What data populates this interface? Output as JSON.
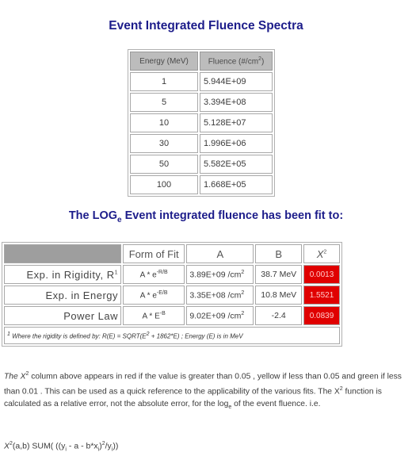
{
  "title": "Event Integrated Fluence Spectra",
  "fluence_table": {
    "headers": {
      "energy": "Energy (MeV)",
      "fluence": "Fluence (#/cm",
      "fluence_sup": "2",
      "fluence_end": ")"
    },
    "rows": [
      {
        "energy": "1",
        "fluence": "5.944E+09"
      },
      {
        "energy": "5",
        "fluence": "3.394E+08"
      },
      {
        "energy": "10",
        "fluence": "5.128E+07"
      },
      {
        "energy": "30",
        "fluence": "1.996E+06"
      },
      {
        "energy": "50",
        "fluence": "5.582E+05"
      },
      {
        "energy": "100",
        "fluence": "1.668E+05"
      }
    ]
  },
  "fit_title": {
    "pre": "The LOG",
    "sub": "e",
    "post": " Event integrated fluence has been fit to:"
  },
  "fit_table": {
    "headers": {
      "form": "Form of Fit",
      "a": "A",
      "b": "B",
      "chi": "X",
      "chi_sup": "2"
    },
    "rows": [
      {
        "name": "Exp. in Rigidity, R",
        "name_sup": "1",
        "form": "A * e",
        "form_sup": "-R/B",
        "a": "3.89E+09 /cm",
        "a_sup": "2",
        "b": "38.7 MeV",
        "chi": "0.0013"
      },
      {
        "name": "Exp. in Energy",
        "name_sup": "",
        "form": "A * e",
        "form_sup": "-E/B",
        "a": "3.35E+08 /cm",
        "a_sup": "2",
        "b": "10.8 MeV",
        "chi": "1.5521"
      },
      {
        "name": "Power Law",
        "name_sup": "",
        "form": "A * E",
        "form_sup": "-B",
        "a": "9.02E+09 /cm",
        "a_sup": "2",
        "b": "-2.4",
        "chi": "0.0839"
      }
    ],
    "note_sup": "1",
    "note": " Where the rigidity is defined by: R(E) = SQRT(E",
    "note_sup2": "2",
    "note_end": " + 1862*E) ; Energy (E) is in MeV"
  },
  "paragraph": {
    "p1": "The X",
    "p1_sup": "2",
    "p2": " column above appears in red if the value is greater than 0.05 , yellow if less than 0.05 and green if less than 0.01 . This can be used as a quick reference to the applicability of the various fits. The X",
    "p2_sup": "2",
    "p3": " function is calculated as a relative error, not the absolute error, for the log",
    "p3_sub": "e",
    "p4": " of the event fluence. i.e."
  },
  "formula": {
    "x": "X",
    "x_sup": "2",
    "body1": "(a,b)  SUM( ((y",
    "i1": "i",
    "body2": " - a - b*x",
    "i2": "i",
    "body3": ")",
    "sup3": "2",
    "body4": "/y",
    "i3": "i",
    "body5": "))"
  },
  "colors": {
    "title": "#1c1c8a",
    "chi_red": "#e00000",
    "header_grey": "#bcbcbc"
  }
}
